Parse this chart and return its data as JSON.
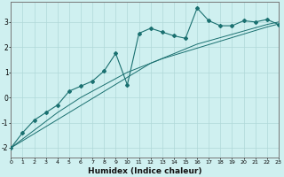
{
  "xlabel": "Humidex (Indice chaleur)",
  "ylabel": "",
  "background_color": "#cff0f0",
  "grid_color": "#b0d8d8",
  "line_color": "#1a7070",
  "x_data": [
    0,
    1,
    2,
    3,
    4,
    5,
    6,
    7,
    8,
    9,
    10,
    11,
    12,
    13,
    14,
    15,
    16,
    17,
    18,
    19,
    20,
    21,
    22,
    23
  ],
  "y_main": [
    -2.0,
    -1.4,
    -0.9,
    -0.6,
    -0.3,
    0.25,
    0.45,
    0.65,
    1.05,
    1.75,
    0.5,
    2.55,
    2.75,
    2.6,
    2.45,
    2.35,
    3.55,
    3.05,
    2.85,
    2.85,
    3.05,
    3.0,
    3.1,
    2.9
  ],
  "y_line1": [
    -2.0,
    -1.72,
    -1.44,
    -1.16,
    -0.88,
    -0.6,
    -0.32,
    -0.04,
    0.24,
    0.52,
    0.8,
    1.08,
    1.36,
    1.55,
    1.74,
    1.93,
    2.12,
    2.25,
    2.38,
    2.51,
    2.64,
    2.77,
    2.9,
    3.0
  ],
  "y_line2": [
    -2.0,
    -1.65,
    -1.3,
    -0.95,
    -0.6,
    -0.3,
    0.0,
    0.25,
    0.5,
    0.75,
    1.0,
    1.18,
    1.36,
    1.54,
    1.68,
    1.82,
    1.96,
    2.1,
    2.24,
    2.38,
    2.52,
    2.66,
    2.8,
    2.92
  ],
  "xlim": [
    0,
    23
  ],
  "ylim": [
    -2.4,
    3.8
  ],
  "yticks": [
    -2,
    -1,
    0,
    1,
    2,
    3
  ],
  "xticks": [
    0,
    1,
    2,
    3,
    4,
    5,
    6,
    7,
    8,
    9,
    10,
    11,
    12,
    13,
    14,
    15,
    16,
    17,
    18,
    19,
    20,
    21,
    22,
    23
  ]
}
